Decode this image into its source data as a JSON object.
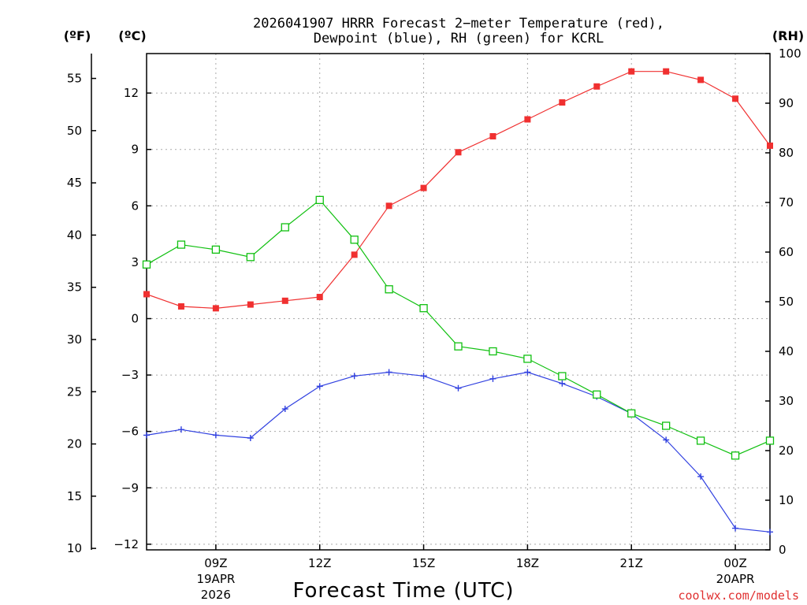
{
  "chart_data": {
    "type": "line",
    "title_line1": "2026041907 HRRR Forecast 2−meter Temperature (red),",
    "title_line2": "Dewpoint (blue), RH (green) for KCRL",
    "unit_f": "(ºF)",
    "unit_c": "(ºC)",
    "unit_rh": "(RH)",
    "xlabel": "Forecast Time (UTC)",
    "credit": "coolwx.com/models",
    "x_hours": [
      7,
      8,
      9,
      10,
      11,
      12,
      13,
      14,
      15,
      16,
      17,
      18,
      19,
      20,
      21,
      22,
      23,
      24,
      25
    ],
    "xlim": [
      7,
      25
    ],
    "x_ticks": [
      {
        "hour": 9,
        "label": "09Z"
      },
      {
        "hour": 12,
        "label": "12Z"
      },
      {
        "hour": 15,
        "label": "15Z"
      },
      {
        "hour": 18,
        "label": "18Z"
      },
      {
        "hour": 21,
        "label": "21Z"
      },
      {
        "hour": 24,
        "label": "00Z"
      }
    ],
    "date_labels": [
      {
        "hour": 9,
        "line1": "19APR",
        "line2": "2026"
      },
      {
        "hour": 24,
        "line1": "20APR",
        "line2": ""
      }
    ],
    "ylim_c": [
      -12.3,
      14.1
    ],
    "yticks_c": [
      -12,
      -9,
      -6,
      -3,
      0,
      3,
      6,
      9,
      12
    ],
    "yticks_f": [
      10,
      15,
      20,
      25,
      30,
      35,
      40,
      45,
      50,
      55
    ],
    "yticks_rh": [
      0,
      10,
      20,
      30,
      40,
      50,
      60,
      70,
      80,
      90,
      100
    ],
    "series": [
      {
        "name": "Temperature",
        "unit": "C",
        "color": "#f03030",
        "marker": "filled-square",
        "values": [
          1.3,
          0.65,
          0.55,
          0.75,
          0.95,
          1.15,
          3.4,
          6.0,
          6.95,
          8.85,
          9.7,
          10.6,
          11.5,
          12.35,
          13.15,
          13.15,
          12.7,
          11.7,
          9.2
        ]
      },
      {
        "name": "Dewpoint",
        "unit": "C",
        "color": "#3040e0",
        "marker": "plus",
        "values": [
          -6.2,
          -5.9,
          -6.2,
          -6.35,
          -4.8,
          -3.6,
          -3.05,
          -2.85,
          -3.05,
          -3.7,
          -3.2,
          -2.85,
          -3.45,
          -4.15,
          -5.05,
          -6.45,
          -8.4,
          -11.15,
          -11.35
        ]
      },
      {
        "name": "RH",
        "unit": "RH",
        "color": "#10c010",
        "marker": "open-square",
        "values": [
          57.5,
          61.5,
          60.5,
          59,
          65,
          70.5,
          62.5,
          52.5,
          48.7,
          41,
          40,
          38.5,
          35,
          31.3,
          27.5,
          25,
          22,
          19,
          22
        ]
      }
    ]
  }
}
